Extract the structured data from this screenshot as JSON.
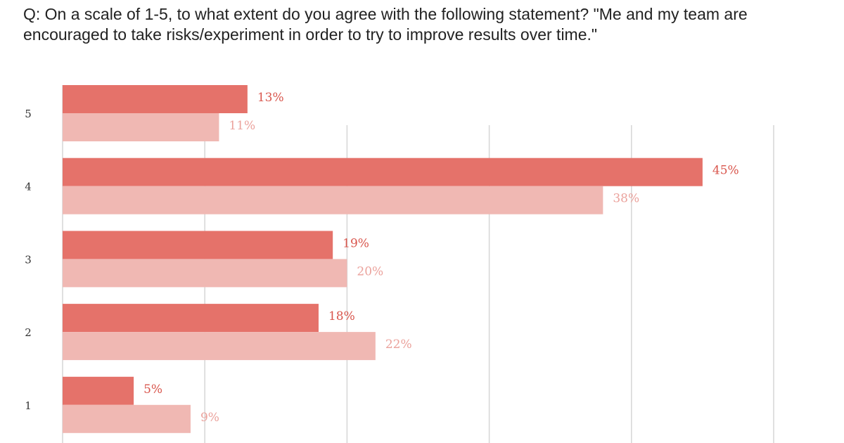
{
  "question": "Q: On a scale of 1-5, to what extent do you agree with the following statement? \"Me and my team are encouraged to take risks/experiment in order to try to improve results over time.\"",
  "colors": {
    "series_1": "#e5726a",
    "series_2": "#f0b8b3",
    "label_1": "#d9564d",
    "label_2": "#eba29c",
    "grid": "#d6d6d6"
  },
  "chart_data": {
    "type": "bar",
    "orientation": "horizontal",
    "title": "Q: On a scale of 1-5, to what extent do you agree with the following statement? \"Me and my team are encouraged to take risks/experiment in order to try to improve results over time.\"",
    "categories": [
      "5",
      "4",
      "3",
      "2",
      "1"
    ],
    "series": [
      {
        "values": [
          13,
          45,
          19,
          18,
          5
        ],
        "labels": [
          "13%",
          "45%",
          "19%",
          "18%",
          "5%"
        ]
      },
      {
        "values": [
          11,
          38,
          20,
          22,
          9
        ],
        "labels": [
          "11%",
          "38%",
          "20%",
          "22%",
          "9%"
        ]
      }
    ],
    "xlim": [
      0,
      50
    ],
    "unit": "%",
    "grid": true,
    "legend": "none"
  }
}
